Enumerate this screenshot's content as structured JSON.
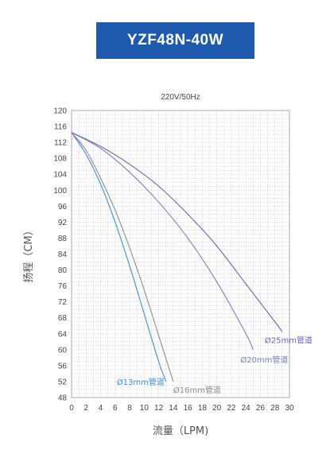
{
  "chart_data": {
    "type": "line",
    "title": "YZF48N-40W",
    "subtitle": "220V/50Hz",
    "xlabel": "流量（LPM)",
    "ylabel": "扬程（CM）",
    "xlim": [
      0,
      30
    ],
    "ylim": [
      48,
      120
    ],
    "x_ticks": [
      "0",
      "2",
      "4",
      "6",
      "8",
      "10",
      "12",
      "14",
      "16",
      "18",
      "20",
      "22",
      "24",
      "26",
      "28",
      "30"
    ],
    "y_ticks": [
      "48",
      "52",
      "56",
      "60",
      "64",
      "68",
      "72",
      "76",
      "80",
      "84",
      "88",
      "92",
      "96",
      "100",
      "104",
      "108",
      "112",
      "116",
      "120"
    ],
    "grid": true,
    "series": [
      {
        "name": "Ø13mm管道",
        "color": "#3b8fd6",
        "x": [
          0,
          2,
          4,
          6,
          8,
          10,
          12,
          13
        ],
        "y": [
          114.5,
          109,
          101.5,
          92,
          81,
          69,
          57,
          52
        ]
      },
      {
        "name": "Ø16mm管道",
        "color": "#8c8c8c",
        "x": [
          0,
          2,
          4,
          6,
          8,
          10,
          12,
          14
        ],
        "y": [
          114.5,
          110,
          103,
          95,
          85.5,
          75,
          63.5,
          52
        ]
      },
      {
        "name": "Ø20mm管道",
        "color": "#7b80c2",
        "x": [
          0,
          4,
          8,
          12,
          16,
          20,
          24,
          25
        ],
        "y": [
          114.5,
          110.5,
          104.5,
          97,
          88,
          77,
          64,
          60
        ]
      },
      {
        "name": "Ø25mm管道",
        "color": "#6e63b3",
        "x": [
          0,
          4,
          8,
          12,
          16,
          20,
          24,
          28,
          29
        ],
        "y": [
          114.5,
          111,
          106.5,
          101,
          94,
          86,
          76.5,
          67,
          64.5
        ]
      }
    ]
  }
}
